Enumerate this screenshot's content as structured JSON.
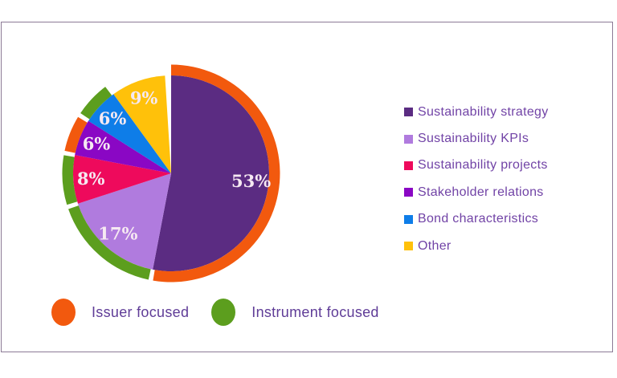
{
  "chart_data": {
    "type": "pie",
    "title": "",
    "unit": "percent",
    "direction": "clockwise",
    "start_angle_deg": 0,
    "legend_position": "right",
    "slices": [
      {
        "label": "Sustainability strategy",
        "value": 53,
        "pct_label": "53%",
        "color": "#5B2C82",
        "focus": "issuer"
      },
      {
        "label": "Sustainability KPIs",
        "value": 17,
        "pct_label": "17%",
        "color": "#B07BDE",
        "focus": "instrument"
      },
      {
        "label": "Sustainability projects",
        "value": 8,
        "pct_label": "8%",
        "color": "#EE0A5C",
        "focus": "instrument"
      },
      {
        "label": "Stakeholder relations",
        "value": 6,
        "pct_label": "6%",
        "color": "#8A07C4",
        "focus": "issuer"
      },
      {
        "label": "Bond characteristics",
        "value": 6,
        "pct_label": "6%",
        "color": "#0E7DE8",
        "focus": "instrument"
      },
      {
        "label": "Other",
        "value": 9,
        "pct_label": "9%",
        "color": "#FFC10A",
        "focus": null
      }
    ],
    "focus_ring": {
      "issuer": {
        "label": "Issuer focused",
        "color": "#F2590E"
      },
      "instrument": {
        "label": "Instrument focused",
        "color": "#5C9E1E"
      }
    },
    "notes": "Outer arc ring classifies each slice as issuer- or instrument-focused; the Other slice (9%) has no ring; values sum to 99% leaving a thin white gap just before 12 o'clock."
  },
  "colors": {
    "frame_border": "#8C7A96",
    "page_background": "#FFFFFF",
    "pie_label_text": "#F6E9F2",
    "legend_text": "#7143A6",
    "focus_legend_text": "#5F3C97"
  }
}
